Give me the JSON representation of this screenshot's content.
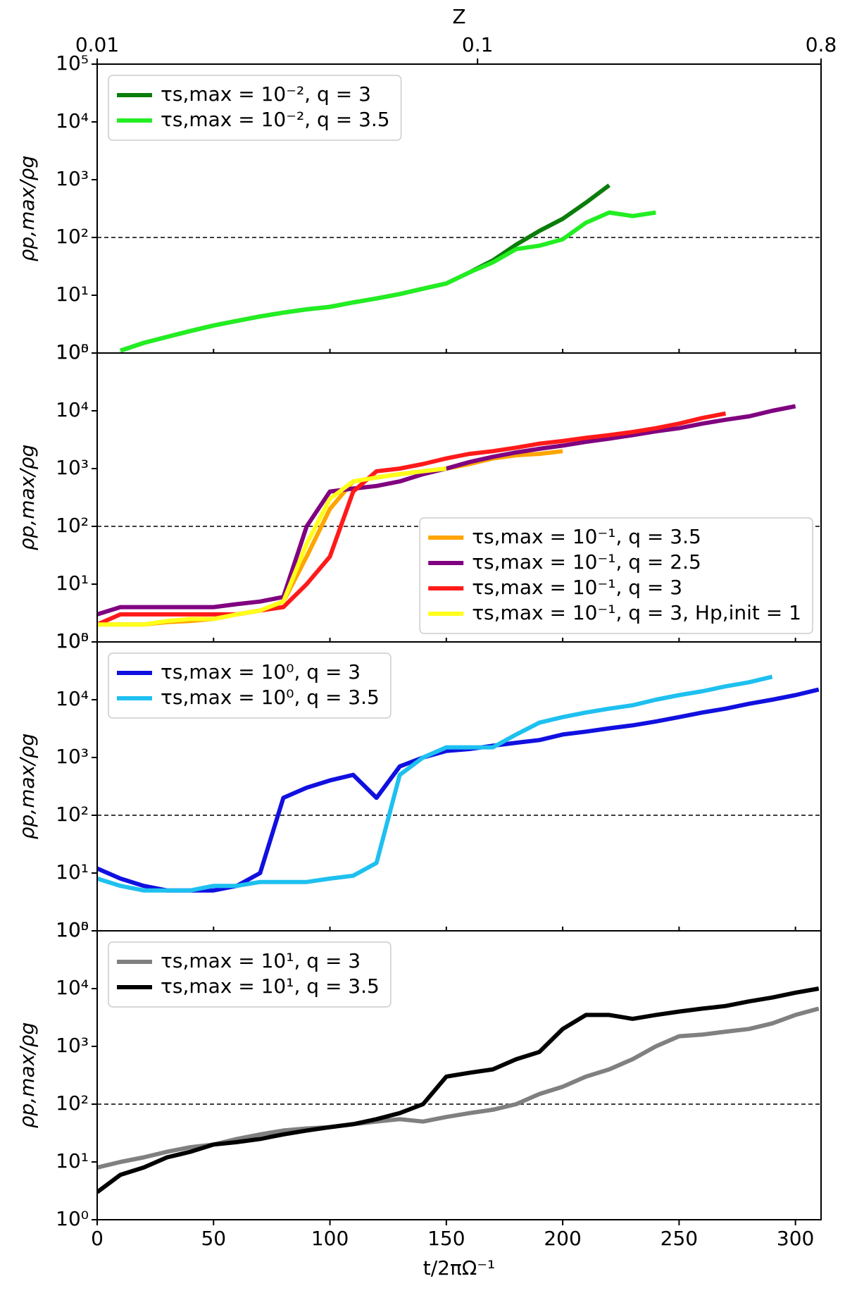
{
  "chart_data": [
    {
      "type": "line",
      "ylabel": "ρp,max/ρg",
      "ylog": true,
      "ylim": [
        1,
        100000
      ],
      "yticks": [
        {
          "value": 1,
          "label": "10⁰"
        },
        {
          "value": 10,
          "label": "10¹"
        },
        {
          "value": 100,
          "label": "10²"
        },
        {
          "value": 1000,
          "label": "10³"
        },
        {
          "value": 10000,
          "label": "10⁴"
        },
        {
          "value": 100000,
          "label": "10⁵"
        }
      ],
      "xlim": [
        0,
        311
      ],
      "xticks": [
        0,
        50,
        100,
        150,
        200,
        250,
        300
      ],
      "x2label": "Z",
      "x2log": true,
      "x2lim": [
        0.01,
        0.8
      ],
      "x2ticks": [
        0.01,
        0.1,
        0.8
      ],
      "hline": 100,
      "legend": "upper left",
      "x": [
        0,
        10,
        20,
        30,
        40,
        50,
        60,
        70,
        80,
        90,
        100,
        110,
        120,
        130,
        140,
        150,
        160,
        170,
        180,
        190,
        200,
        210,
        220,
        230,
        240,
        250,
        260,
        270,
        280,
        290,
        300,
        310
      ],
      "series": [
        {
          "name": "τs,max = 10⁻², q = 3",
          "color": "#0a7d0a",
          "values": [
            null,
            1.1,
            1.5,
            1.9,
            2.4,
            3,
            3.6,
            4.3,
            5,
            5.7,
            6.3,
            7.5,
            8.8,
            10.5,
            13,
            16,
            25,
            40,
            75,
            130,
            210,
            400,
            800,
            null,
            null,
            null,
            null,
            null,
            null,
            null,
            null,
            null
          ]
        },
        {
          "name": "τs,max = 10⁻², q = 3.5",
          "color": "#22ee22",
          "values": [
            null,
            1.1,
            1.5,
            1.9,
            2.4,
            3,
            3.6,
            4.3,
            5,
            5.7,
            6.3,
            7.5,
            8.8,
            10.5,
            13,
            16,
            25,
            37,
            63,
            72,
            93,
            180,
            270,
            235,
            270,
            null,
            null,
            null,
            null,
            null,
            null,
            null
          ]
        }
      ]
    },
    {
      "type": "line",
      "ylabel": "ρp,max/ρg",
      "ylog": true,
      "ylim": [
        1,
        100000
      ],
      "yticks": [
        {
          "value": 1,
          "label": "10⁰"
        },
        {
          "value": 10,
          "label": "10¹"
        },
        {
          "value": 100,
          "label": "10²"
        },
        {
          "value": 1000,
          "label": "10³"
        },
        {
          "value": 10000,
          "label": "10⁴"
        },
        {
          "value": 100000,
          "label": "10⁵"
        }
      ],
      "xlim": [
        0,
        311
      ],
      "xticks": [
        0,
        50,
        100,
        150,
        200,
        250,
        300
      ],
      "hline": 100,
      "legend": "lower right",
      "x": [
        0,
        10,
        20,
        30,
        40,
        50,
        60,
        70,
        80,
        90,
        100,
        110,
        120,
        130,
        140,
        150,
        160,
        170,
        180,
        190,
        200,
        210,
        220,
        230,
        240,
        250,
        260,
        270,
        280,
        290,
        300,
        310
      ],
      "series": [
        {
          "name": "τs,max = 10⁻¹, q = 3.5",
          "color": "#ffa500",
          "values": [
            2,
            2,
            2,
            2.2,
            2.3,
            2.5,
            3,
            3.5,
            5,
            30,
            200,
            600,
            700,
            800,
            900,
            1000,
            1200,
            1500,
            1700,
            1800,
            2000,
            null,
            null,
            null,
            null,
            null,
            null,
            null,
            null,
            null,
            null,
            null
          ]
        },
        {
          "name": "τs,max = 10⁻¹, q = 2.5",
          "color": "#800080",
          "values": [
            3,
            4,
            4,
            4,
            4,
            4,
            4.5,
            5,
            6,
            100,
            400,
            450,
            500,
            600,
            800,
            1000,
            1300,
            1600,
            1900,
            2200,
            2500,
            2900,
            3300,
            3800,
            4400,
            5000,
            6000,
            7000,
            8000,
            10000,
            12000,
            null
          ]
        },
        {
          "name": "τs,max = 10⁻¹, q = 3",
          "color": "#ff1a1a",
          "values": [
            2,
            3,
            3,
            3,
            3,
            3,
            3,
            3.5,
            4,
            10,
            30,
            400,
            900,
            1000,
            1200,
            1500,
            1800,
            2000,
            2300,
            2700,
            3000,
            3400,
            3800,
            4300,
            5000,
            6000,
            7500,
            9000,
            null,
            null,
            null,
            null
          ]
        },
        {
          "name": "τs,max = 10⁻¹, q = 3, Hp,init = 1",
          "color": "#ffff1a",
          "values": [
            2,
            2,
            2,
            2.3,
            2.5,
            2.5,
            3,
            3.5,
            5,
            50,
            300,
            600,
            700,
            800,
            900,
            1000,
            null,
            null,
            null,
            null,
            null,
            null,
            null,
            null,
            null,
            null,
            null,
            null,
            null,
            null,
            null,
            null
          ]
        }
      ]
    },
    {
      "type": "line",
      "ylabel": "ρp,max/ρg",
      "ylog": true,
      "ylim": [
        1,
        100000
      ],
      "yticks": [
        {
          "value": 1,
          "label": "10⁰"
        },
        {
          "value": 10,
          "label": "10¹"
        },
        {
          "value": 100,
          "label": "10²"
        },
        {
          "value": 1000,
          "label": "10³"
        },
        {
          "value": 10000,
          "label": "10⁴"
        },
        {
          "value": 100000,
          "label": "10⁵"
        }
      ],
      "xlim": [
        0,
        311
      ],
      "xticks": [
        0,
        50,
        100,
        150,
        200,
        250,
        300
      ],
      "hline": 100,
      "legend": "upper left",
      "x": [
        0,
        10,
        20,
        30,
        40,
        50,
        60,
        70,
        80,
        90,
        100,
        110,
        120,
        130,
        140,
        150,
        160,
        170,
        180,
        190,
        200,
        210,
        220,
        230,
        240,
        250,
        260,
        270,
        280,
        290,
        300,
        310
      ],
      "series": [
        {
          "name": "τs,max = 10⁰, q = 3",
          "color": "#1010e0",
          "values": [
            12,
            8,
            6,
            5,
            5,
            5,
            6,
            10,
            200,
            300,
            400,
            500,
            200,
            700,
            1000,
            1300,
            1400,
            1600,
            1800,
            2000,
            2500,
            2800,
            3200,
            3600,
            4200,
            5000,
            6000,
            7000,
            8500,
            10000,
            12000,
            15000
          ]
        },
        {
          "name": "τs,max = 10⁰, q = 3.5",
          "color": "#1ec0f0",
          "values": [
            8,
            6,
            5,
            5,
            5,
            6,
            6,
            7,
            7,
            7,
            8,
            9,
            15,
            500,
            1000,
            1500,
            1500,
            1500,
            2500,
            4000,
            5000,
            6000,
            7000,
            8000,
            10000,
            12000,
            14000,
            17000,
            20000,
            25000,
            null,
            null
          ]
        }
      ]
    },
    {
      "type": "line",
      "ylabel": "ρp,max/ρg",
      "ylog": true,
      "ylim": [
        1,
        100000
      ],
      "yticks": [
        {
          "value": 1,
          "label": "10⁰"
        },
        {
          "value": 10,
          "label": "10¹"
        },
        {
          "value": 100,
          "label": "10²"
        },
        {
          "value": 1000,
          "label": "10³"
        },
        {
          "value": 10000,
          "label": "10⁴"
        },
        {
          "value": 100000,
          "label": "10⁵"
        }
      ],
      "xlim": [
        0,
        311
      ],
      "xticks": [
        0,
        50,
        100,
        150,
        200,
        250,
        300
      ],
      "xlabel": "t/2πΩ⁻¹",
      "hline": 100,
      "legend": "upper left",
      "x": [
        0,
        10,
        20,
        30,
        40,
        50,
        60,
        70,
        80,
        90,
        100,
        110,
        120,
        130,
        140,
        150,
        160,
        170,
        180,
        190,
        200,
        210,
        220,
        230,
        240,
        250,
        260,
        270,
        280,
        290,
        300,
        310
      ],
      "series": [
        {
          "name": "τs,max = 10¹, q = 3",
          "color": "#808080",
          "values": [
            8,
            10,
            12,
            15,
            18,
            20,
            25,
            30,
            35,
            38,
            40,
            45,
            50,
            55,
            50,
            60,
            70,
            80,
            100,
            150,
            200,
            300,
            400,
            600,
            1000,
            1500,
            1600,
            1800,
            2000,
            2500,
            3500,
            4500
          ]
        },
        {
          "name": "τs,max = 10¹, q = 3.5",
          "color": "#000000",
          "values": [
            3,
            6,
            8,
            12,
            15,
            20,
            22,
            25,
            30,
            35,
            40,
            45,
            55,
            70,
            100,
            300,
            350,
            400,
            600,
            800,
            2000,
            3500,
            3500,
            3000,
            3500,
            4000,
            4500,
            5000,
            6000,
            7000,
            8500,
            10000
          ]
        }
      ]
    }
  ]
}
